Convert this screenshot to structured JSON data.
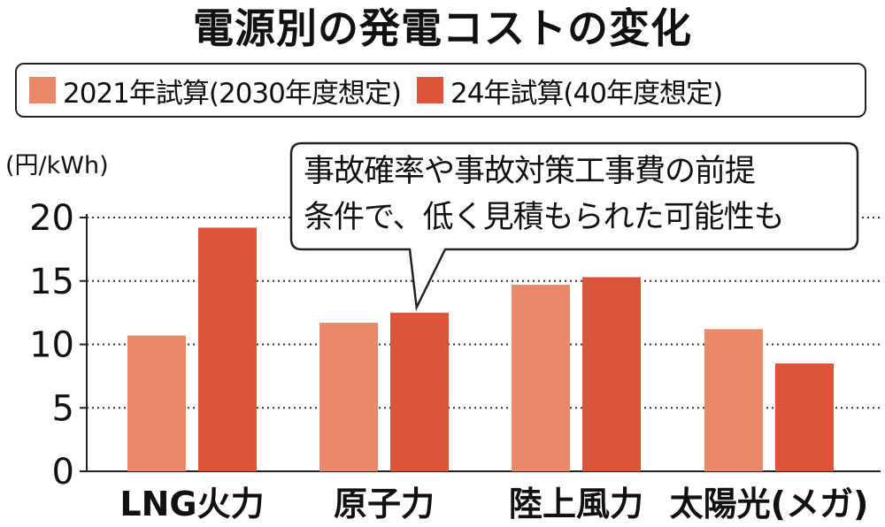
{
  "colors": {
    "series_2021": "#e8896a",
    "series_2024": "#dd5439",
    "grid": "#333333",
    "text": "#111111"
  },
  "chart_data": {
    "type": "bar",
    "title": "電源別の発電コストの変化",
    "ylabel": "(円/kWh)",
    "ylim": [
      0,
      20
    ],
    "yticks": [
      "0",
      "5",
      "10",
      "15",
      "20"
    ],
    "ytick_values": [
      0,
      5,
      10,
      15,
      20
    ],
    "grid": true,
    "legend_position": "top",
    "categories": [
      "LNG火力",
      "原子力",
      "陸上風力",
      "太陽光(メガ)"
    ],
    "series": [
      {
        "name": "2021年試算(2030年度想定)",
        "values": [
          10.7,
          11.7,
          14.7,
          11.2
        ]
      },
      {
        "name": "24年試算(40年度想定)",
        "values": [
          19.2,
          12.5,
          15.3,
          8.5
        ]
      }
    ],
    "annotation": {
      "lines": [
        "事故確率や事故対策工事費の前提",
        "条件で、低く見積もられた可能性も"
      ],
      "target_category": "原子力",
      "target_series": 1
    }
  }
}
